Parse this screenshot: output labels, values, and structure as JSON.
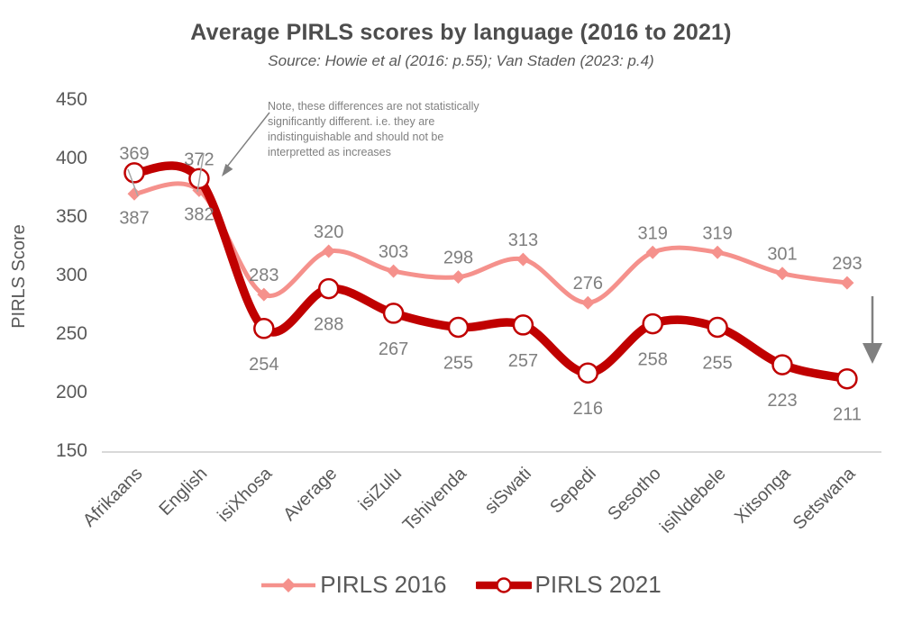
{
  "title": "Average PIRLS scores by language (2016 to 2021)",
  "subtitle": "Source:  Howie et al (2016: p.55); Van Staden (2023: p.4)",
  "annotation_note": "Note, these differences are not statistically\nsignificantly different. i.e. they are\nindistinguishable and should not be\ninterpretted as increases",
  "colors": {
    "pirls_2016": "#F5918C",
    "pirls_2021": "#C00000",
    "marker_fill": "#FFFFFF",
    "data_label": "#7F7F7F",
    "axis_text": "#595959",
    "title_text": "#4D4D4D",
    "subtitle_text": "#595959",
    "axis_line": "#D9D9D9",
    "annotation_text": "#808080",
    "arrow": "#808080",
    "leader_line": "#A6A6A6"
  },
  "chart_data": {
    "type": "line",
    "title": "Average PIRLS scores by language (2016 to 2021)",
    "categories": [
      "Afrikaans",
      "English",
      "isiXhosa",
      "Average",
      "isiZulu",
      "Tshivenda",
      "siSwati",
      "Sepedi",
      "Sesotho",
      "isiNdebele",
      "Xitsonga",
      "Setswana"
    ],
    "series": [
      {
        "name": "PIRLS 2016",
        "values": [
          369,
          372,
          283,
          320,
          303,
          298,
          313,
          276,
          319,
          319,
          301,
          293
        ],
        "color": "#F5918C",
        "marker": "diamond",
        "label_position": "above"
      },
      {
        "name": "PIRLS 2021",
        "values": [
          387,
          382,
          254,
          288,
          267,
          255,
          257,
          216,
          258,
          255,
          223,
          211
        ],
        "color": "#C00000",
        "marker": "open-circle",
        "label_position": "below"
      }
    ],
    "xlabel": "",
    "ylabel": "PIRLS Score",
    "ylim": [
      150,
      450
    ],
    "yticks": [
      150,
      200,
      250,
      300,
      350,
      400,
      450
    ],
    "grid": false,
    "legend_position": "bottom",
    "smooth": true
  }
}
